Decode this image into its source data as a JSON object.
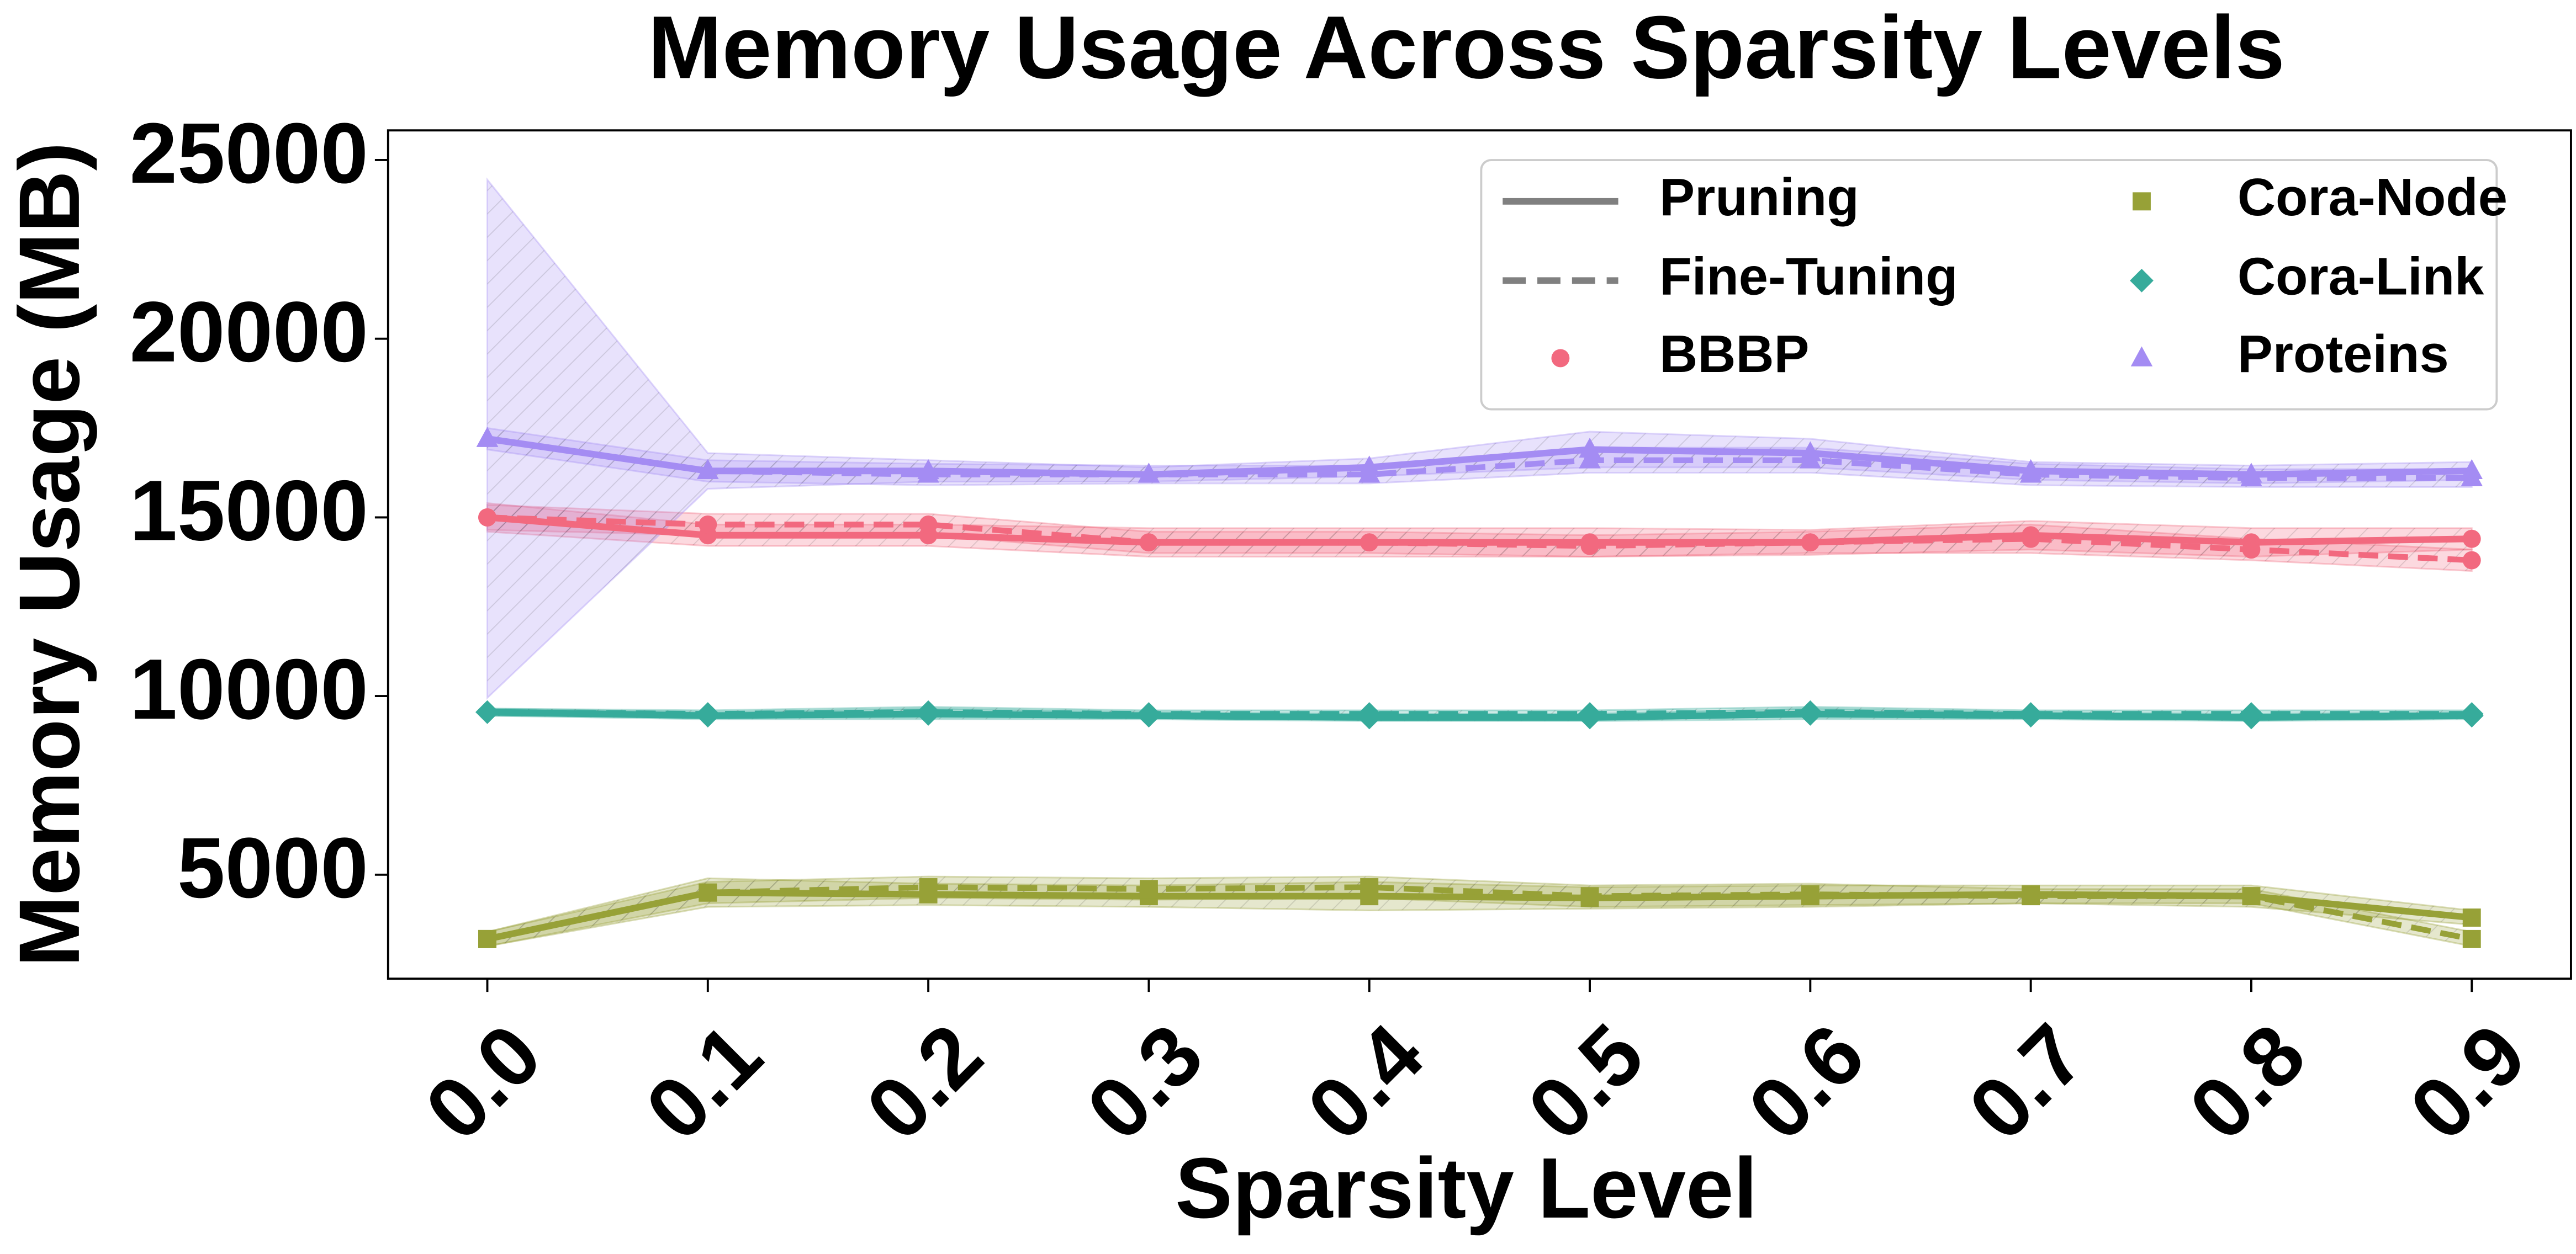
{
  "chart_data": {
    "type": "line",
    "title": "Memory Usage Across Sparsity Levels",
    "x_label": "Sparsity Level",
    "y_label": "Memory Usage (MB)",
    "x": [
      0,
      0.1,
      0.2,
      0.3,
      0.4,
      0.5,
      0.6,
      0.7,
      0.8,
      0.9
    ],
    "xlim": [
      -0.045,
      0.945
    ],
    "xticks": [
      {
        "value": 0,
        "label": "0.0"
      },
      0.1,
      0.2,
      0.3,
      0.4,
      0.5,
      0.6,
      0.7,
      0.8,
      0.9
    ],
    "ylim": [
      2090,
      25830
    ],
    "yticks": [
      5000,
      10000,
      15000,
      20000,
      25000
    ],
    "grid": false,
    "legend": "upper right",
    "methods": [
      {
        "name": "Pruning",
        "dash": "solid",
        "color": "#808080"
      },
      {
        "name": "Fine-Tuning",
        "dash": "dashed",
        "color": "#808080"
      }
    ],
    "series": [
      {
        "name": "BBBP",
        "color": "#f2697f",
        "marker": "circle",
        "values": [
          [
            15000,
            14500,
            14500,
            14300,
            14300,
            14300,
            14300,
            14500,
            14300,
            14400
          ],
          [
            15000,
            14800,
            14800,
            14300,
            14300,
            14200,
            14300,
            14400,
            14100,
            13800
          ]
        ],
        "std": [
          [
            400,
            300,
            300,
            400,
            400,
            400,
            350,
            400,
            400,
            300
          ],
          [
            350,
            300,
            300,
            300,
            300,
            300,
            300,
            400,
            300,
            300
          ]
        ]
      },
      {
        "name": "Cora-Node",
        "color": "#97a137",
        "marker": "square",
        "values": [
          [
            3200,
            4500,
            4450,
            4400,
            4400,
            4350,
            4400,
            4450,
            4400,
            3800
          ],
          [
            3200,
            4500,
            4650,
            4600,
            4650,
            4400,
            4450,
            4400,
            4400,
            3200
          ]
        ],
        "std": [
          [
            200,
            400,
            300,
            300,
            400,
            300,
            300,
            250,
            300,
            200
          ],
          [
            200,
            300,
            300,
            300,
            300,
            300,
            300,
            200,
            200,
            200
          ]
        ]
      },
      {
        "name": "Cora-Link",
        "color": "#36ab9b",
        "marker": "diamond",
        "values": [
          [
            9550,
            9450,
            9500,
            9450,
            9400,
            9400,
            9500,
            9450,
            9400,
            9450
          ],
          [
            9550,
            9500,
            9550,
            9500,
            9500,
            9500,
            9550,
            9500,
            9500,
            9500
          ]
        ],
        "std": [
          [
            100,
            100,
            150,
            100,
            100,
            100,
            150,
            100,
            100,
            100
          ],
          [
            100,
            100,
            150,
            100,
            100,
            100,
            150,
            100,
            100,
            100
          ]
        ]
      },
      {
        "name": "Proteins",
        "color": "#a48cf3",
        "marker": "triangle",
        "values": [
          [
            17200,
            16300,
            16300,
            16200,
            16400,
            16900,
            16800,
            16300,
            16200,
            16300
          ],
          [
            17200,
            16300,
            16200,
            16200,
            16200,
            16600,
            16600,
            16200,
            16100,
            16100
          ]
        ],
        "std": [
          [
            7250,
            500,
            300,
            200,
            250,
            500,
            400,
            250,
            250,
            250
          ],
          [
            300,
            300,
            300,
            250,
            250,
            350,
            350,
            300,
            250,
            250
          ]
        ]
      }
    ]
  }
}
